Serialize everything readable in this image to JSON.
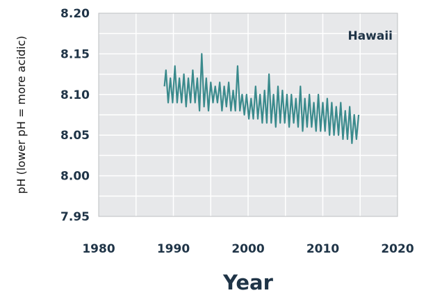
{
  "chart_data": {
    "type": "line",
    "panel_label": "Hawaii",
    "xlabel": "Year",
    "ylabel": "pH (lower pH = more acidic)",
    "xlim": [
      1980,
      2020
    ],
    "ylim": [
      7.95,
      8.2
    ],
    "xticks": [
      1980,
      1990,
      2000,
      2010,
      2020
    ],
    "xtick_labels": [
      "1980",
      "1990",
      "2000",
      "2010",
      "2020"
    ],
    "yticks": [
      7.95,
      8.0,
      8.05,
      8.1,
      8.15,
      8.2
    ],
    "ytick_labels": [
      "7.95",
      "8.00",
      "8.05",
      "8.10",
      "8.15",
      "8.20"
    ],
    "grid": true,
    "legend": "none",
    "colors": {
      "line": "#3a8a8c",
      "plot_background": "#e7e8ea",
      "grid": "#ffffff",
      "frame": "#bdbfc2"
    },
    "series": [
      {
        "x": [
          1988.8,
          1989.0,
          1989.3,
          1989.6,
          1989.9,
          1990.2,
          1990.5,
          1990.8,
          1991.1,
          1991.4,
          1991.7,
          1992.0,
          1992.3,
          1992.6,
          1992.9,
          1993.2,
          1993.5,
          1993.8,
          1994.1,
          1994.4,
          1994.7,
          1995.0,
          1995.3,
          1995.6,
          1995.9,
          1996.2,
          1996.5,
          1996.8,
          1997.1,
          1997.4,
          1997.7,
          1998.0,
          1998.3,
          1998.6,
          1998.9,
          1999.2,
          1999.5,
          1999.8,
          2000.1,
          2000.4,
          2000.7,
          2001.0,
          2001.3,
          2001.6,
          2001.9,
          2002.2,
          2002.5,
          2002.8,
          2003.1,
          2003.4,
          2003.7,
          2004.0,
          2004.3,
          2004.6,
          2004.9,
          2005.2,
          2005.5,
          2005.8,
          2006.1,
          2006.4,
          2006.7,
          2007.0,
          2007.3,
          2007.6,
          2007.9,
          2008.2,
          2008.5,
          2008.8,
          2009.1,
          2009.4,
          2009.7,
          2010.0,
          2010.3,
          2010.6,
          2010.9,
          2011.2,
          2011.5,
          2011.8,
          2012.1,
          2012.4,
          2012.7,
          2013.0,
          2013.3,
          2013.6,
          2013.9,
          2014.2,
          2014.5,
          2014.8
        ],
        "y": [
          8.11,
          8.13,
          8.09,
          8.12,
          8.09,
          8.135,
          8.09,
          8.12,
          8.09,
          8.125,
          8.085,
          8.12,
          8.09,
          8.13,
          8.09,
          8.12,
          8.08,
          8.15,
          8.085,
          8.12,
          8.08,
          8.115,
          8.09,
          8.11,
          8.09,
          8.115,
          8.08,
          8.11,
          8.085,
          8.115,
          8.08,
          8.105,
          8.08,
          8.135,
          8.08,
          8.1,
          8.075,
          8.1,
          8.07,
          8.095,
          8.07,
          8.11,
          8.07,
          8.1,
          8.065,
          8.105,
          8.065,
          8.125,
          8.065,
          8.1,
          8.06,
          8.11,
          8.065,
          8.105,
          8.065,
          8.1,
          8.06,
          8.1,
          8.065,
          8.095,
          8.06,
          8.11,
          8.055,
          8.095,
          8.06,
          8.1,
          8.06,
          8.09,
          8.055,
          8.1,
          8.055,
          8.09,
          8.055,
          8.095,
          8.05,
          8.09,
          8.05,
          8.085,
          8.05,
          8.09,
          8.045,
          8.08,
          8.045,
          8.085,
          8.04,
          8.075,
          8.045,
          8.075
        ]
      }
    ]
  }
}
